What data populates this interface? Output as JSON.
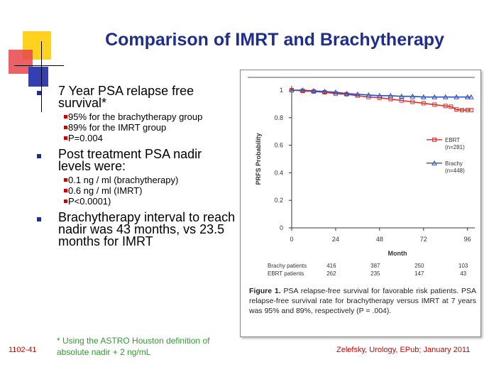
{
  "slide": {
    "title": "Comparison of IMRT and Brachytherapy",
    "bullets": [
      {
        "text": "7 Year PSA relapse free survival*",
        "subs": [
          "95% for the brachytherapy group",
          "89% for the IMRT group",
          "P=0.004"
        ]
      },
      {
        "text": "Post treatment PSA nadir levels were:",
        "subs": [
          "0.1 ng / ml (brachytherapy)",
          "0.6 ng / ml (IMRT)",
          "P<0.0001)"
        ]
      },
      {
        "text": "Brachytherapy interval to reach nadir was 43 months, vs 23.5 months for IMRT",
        "subs": []
      }
    ],
    "footnote": "* Using the ASTRO Houston definition of absolute nadir + 2 ng/mL",
    "slide_number": "1102-41",
    "citation": "Zelefsky, Urology, EPub; January 2011",
    "colors": {
      "title": "#1f2e8c",
      "bullet": "#1f2e8c",
      "subbullet": "#cc0000",
      "footnote": "#339933",
      "ebrt": "#d9302a",
      "brachy": "#2f4fb5"
    }
  },
  "figure": {
    "caption_label": "Figure 1.",
    "caption_text": "PSA relapse-free survival for favorable risk patients. PSA relapse-free survival rate for brachytherapy versus IMRT at 7 years was 95% and 89%, respectively (P = .004).",
    "risk_table": {
      "rows": [
        {
          "label": "Brachy patients",
          "values": [
            "416",
            "387",
            "250",
            "103"
          ]
        },
        {
          "label": "EBRT patients",
          "values": [
            "262",
            "235",
            "147",
            "43"
          ]
        }
      ]
    }
  },
  "chart_data": {
    "type": "line",
    "ylabel": "PRFS Probability",
    "xlabel": "Month",
    "xlim": [
      0,
      100
    ],
    "ylim": [
      0,
      1
    ],
    "xticks": [
      0,
      24,
      48,
      72,
      96
    ],
    "yticks": [
      0,
      0.2,
      0.4,
      0.6,
      0.8,
      1
    ],
    "ytick_labels": [
      "0",
      "0.2",
      "0.4",
      "0.6",
      "0.8",
      "1"
    ],
    "legend_position": "right",
    "series": [
      {
        "name": "EBRT",
        "sublabel": "(n=281)",
        "marker": "square",
        "color": "#d9302a",
        "x": [
          0,
          6,
          12,
          18,
          24,
          30,
          36,
          42,
          48,
          54,
          60,
          66,
          72,
          78,
          84,
          87,
          90,
          93,
          96,
          98
        ],
        "y": [
          1.0,
          0.995,
          0.99,
          0.985,
          0.975,
          0.97,
          0.96,
          0.95,
          0.945,
          0.935,
          0.925,
          0.915,
          0.905,
          0.895,
          0.885,
          0.88,
          0.86,
          0.855,
          0.855,
          0.855
        ]
      },
      {
        "name": "Brachy",
        "sublabel": "(n=448)",
        "marker": "triangle",
        "color": "#2f4fb5",
        "x": [
          0,
          6,
          12,
          18,
          24,
          30,
          36,
          42,
          48,
          54,
          60,
          66,
          72,
          78,
          84,
          90,
          96,
          98
        ],
        "y": [
          1.0,
          1.0,
          0.995,
          0.99,
          0.985,
          0.975,
          0.97,
          0.965,
          0.96,
          0.96,
          0.955,
          0.955,
          0.95,
          0.95,
          0.95,
          0.95,
          0.95,
          0.95
        ]
      }
    ]
  }
}
